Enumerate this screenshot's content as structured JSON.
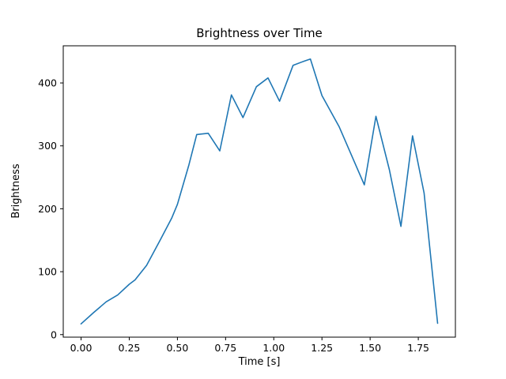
{
  "figure": {
    "background": "#ffffff"
  },
  "chart_data": {
    "type": "line",
    "title": "Brightness over Time",
    "xlabel": "Time [s]",
    "ylabel": "Brightness",
    "legend": null,
    "grid": false,
    "line_color": "#1f77b4",
    "xlim": [
      -0.0925,
      1.9425
    ],
    "ylim": [
      -4.05,
      459.05
    ],
    "xtick_values": [
      0,
      0.25,
      0.5,
      0.75,
      1.0,
      1.25,
      1.5,
      1.75
    ],
    "xtick_labels": [
      "0.00",
      "0.25",
      "0.50",
      "0.75",
      "1.00",
      "1.25",
      "1.50",
      "1.75"
    ],
    "ytick_values": [
      0,
      100,
      200,
      300,
      400
    ],
    "ytick_labels": [
      "0",
      "100",
      "200",
      "300",
      "400"
    ],
    "x": [
      0.0,
      0.065,
      0.13,
      0.19,
      0.25,
      0.28,
      0.34,
      0.41,
      0.47,
      0.5,
      0.56,
      0.6,
      0.66,
      0.72,
      0.78,
      0.84,
      0.91,
      0.97,
      1.03,
      1.1,
      1.16,
      1.19,
      1.25,
      1.34,
      1.47,
      1.53,
      1.6,
      1.66,
      1.72,
      1.78,
      1.85
    ],
    "y": [
      17,
      35,
      52,
      63,
      80,
      87,
      110,
      150,
      185,
      207,
      270,
      318,
      320,
      292,
      381,
      345,
      394,
      408,
      371,
      428,
      435,
      438,
      380,
      330,
      238,
      347,
      262,
      172,
      316,
      225,
      18
    ]
  }
}
